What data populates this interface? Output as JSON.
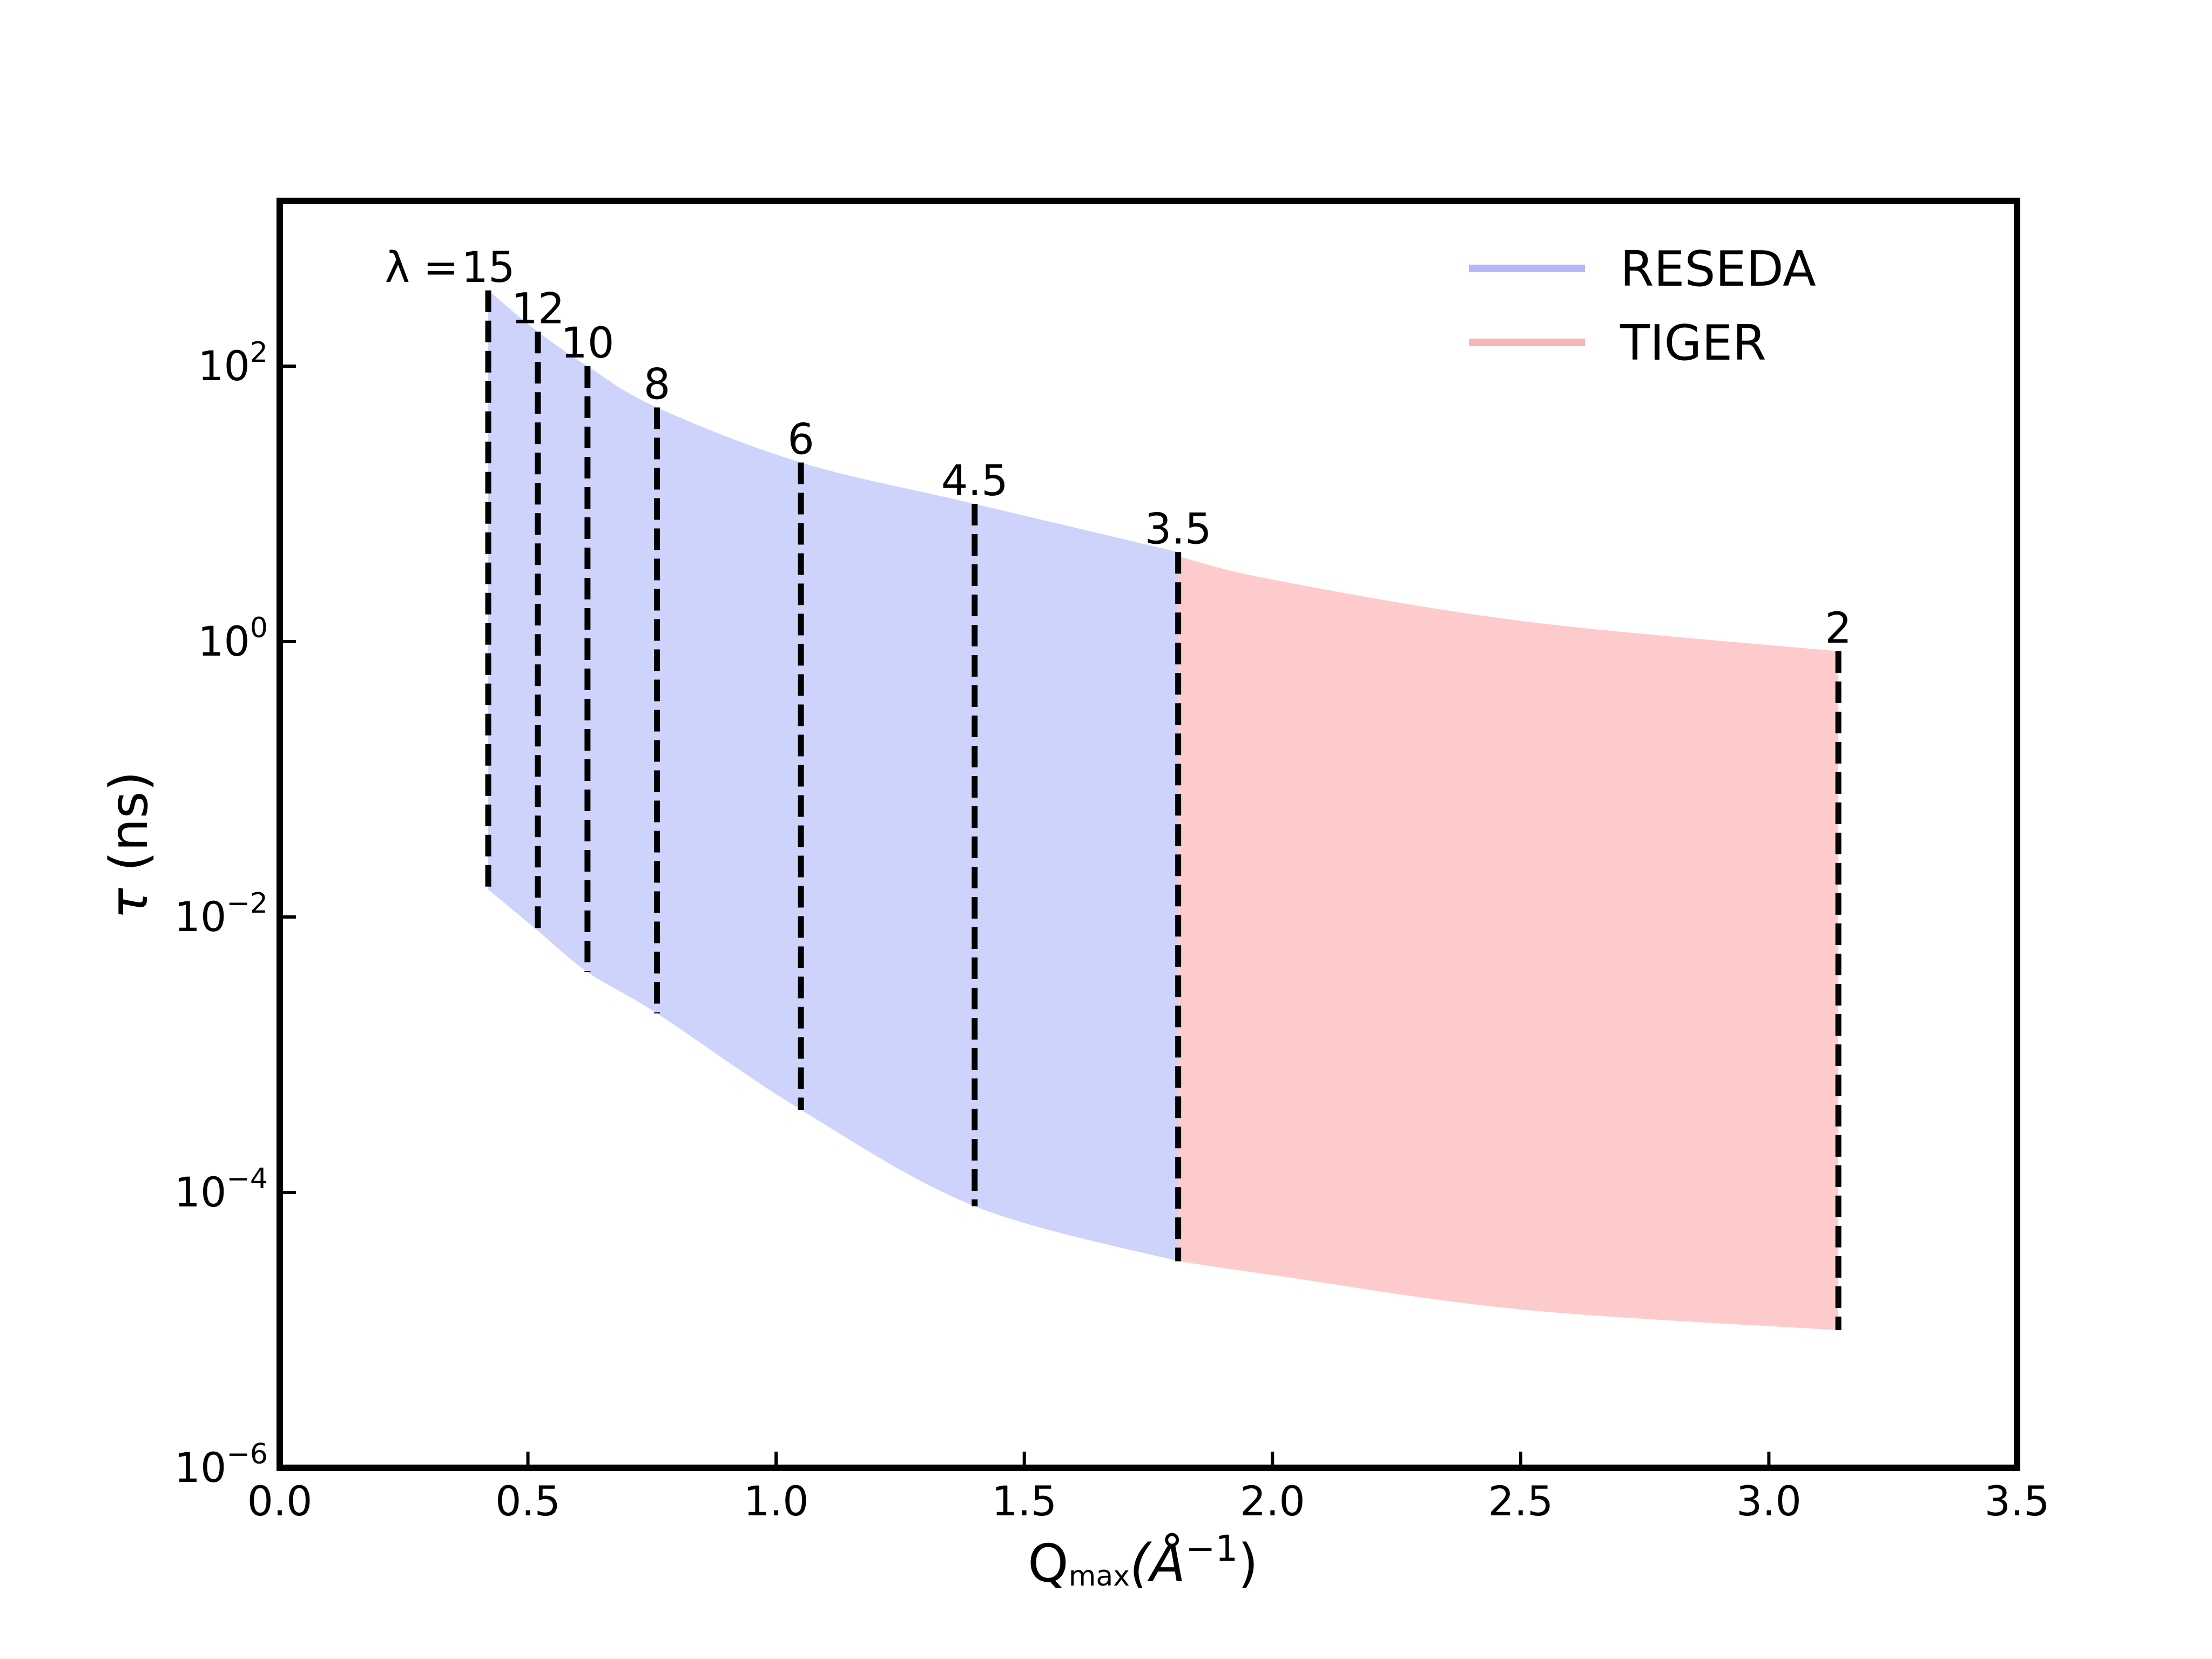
{
  "chart_data": {
    "type": "area",
    "title": "",
    "xlabel": {
      "main": "Q",
      "sub": "max",
      "unit": "(Å",
      "sup": "−1",
      "close": ")"
    },
    "ylabel": {
      "symbol": "τ",
      "unit": " (ns)"
    },
    "x_scale": "linear",
    "y_scale": "log",
    "xlim": [
      0.0,
      3.5
    ],
    "ylim_exponent": [
      -6,
      3.2
    ],
    "x_ticks": [
      {
        "value": 0.0,
        "label": "0.0"
      },
      {
        "value": 0.5,
        "label": "0.5"
      },
      {
        "value": 1.0,
        "label": "1.0"
      },
      {
        "value": 1.5,
        "label": "1.5"
      },
      {
        "value": 2.0,
        "label": "2.0"
      },
      {
        "value": 2.5,
        "label": "2.5"
      },
      {
        "value": 3.0,
        "label": "3.0"
      },
      {
        "value": 3.5,
        "label": "3.5"
      }
    ],
    "y_ticks": [
      {
        "exponent": 2,
        "base": "10",
        "sup": "2"
      },
      {
        "exponent": 0,
        "base": "10",
        "sup": "0"
      },
      {
        "exponent": -2,
        "base": "10",
        "sup": "−2"
      },
      {
        "exponent": -4,
        "base": "10",
        "sup": "−4"
      },
      {
        "exponent": -6,
        "base": "10",
        "sup": "−6"
      }
    ],
    "legend": {
      "position": "top-right",
      "entries": [
        {
          "name": "RESEDA",
          "color": "#b3b9f7"
        },
        {
          "name": "TIGER",
          "color": "#f9b5b5"
        }
      ]
    },
    "series": [
      {
        "name": "RESEDA",
        "color": "#cdd3fb",
        "q": [
          0.42,
          0.52,
          0.62,
          0.76,
          1.05,
          1.4,
          1.81
        ],
        "tau_max_log10": [
          2.55,
          2.25,
          2.0,
          1.7,
          1.3,
          1.0,
          0.65
        ],
        "tau_min_log10": [
          -1.8,
          -2.1,
          -2.4,
          -2.7,
          -3.4,
          -4.1,
          -4.5
        ]
      },
      {
        "name": "TIGER",
        "color": "#fdcbcb",
        "q": [
          1.81,
          2.0,
          2.5,
          3.14
        ],
        "tau_max_log10": [
          0.62,
          0.45,
          0.15,
          -0.07
        ],
        "tau_min_log10": [
          -4.5,
          -4.6,
          -4.85,
          -5.0
        ]
      }
    ],
    "wavelength_prefix": "λ =",
    "wavelength_markers": [
      {
        "label": "15",
        "q": 0.42,
        "top_log10": 2.55,
        "bottom_log10": -1.8
      },
      {
        "label": "12",
        "q": 0.52,
        "top_log10": 2.25,
        "bottom_log10": -2.1
      },
      {
        "label": "10",
        "q": 0.62,
        "top_log10": 2.0,
        "bottom_log10": -2.4
      },
      {
        "label": "8",
        "q": 0.76,
        "top_log10": 1.7,
        "bottom_log10": -2.7
      },
      {
        "label": "6",
        "q": 1.05,
        "top_log10": 1.3,
        "bottom_log10": -3.4
      },
      {
        "label": "4.5",
        "q": 1.4,
        "top_log10": 1.0,
        "bottom_log10": -4.1
      },
      {
        "label": "3.5",
        "q": 1.81,
        "top_log10": 0.65,
        "bottom_log10": -4.5
      },
      {
        "label": "2",
        "q": 3.14,
        "top_log10": -0.07,
        "bottom_log10": -5.0
      }
    ]
  }
}
